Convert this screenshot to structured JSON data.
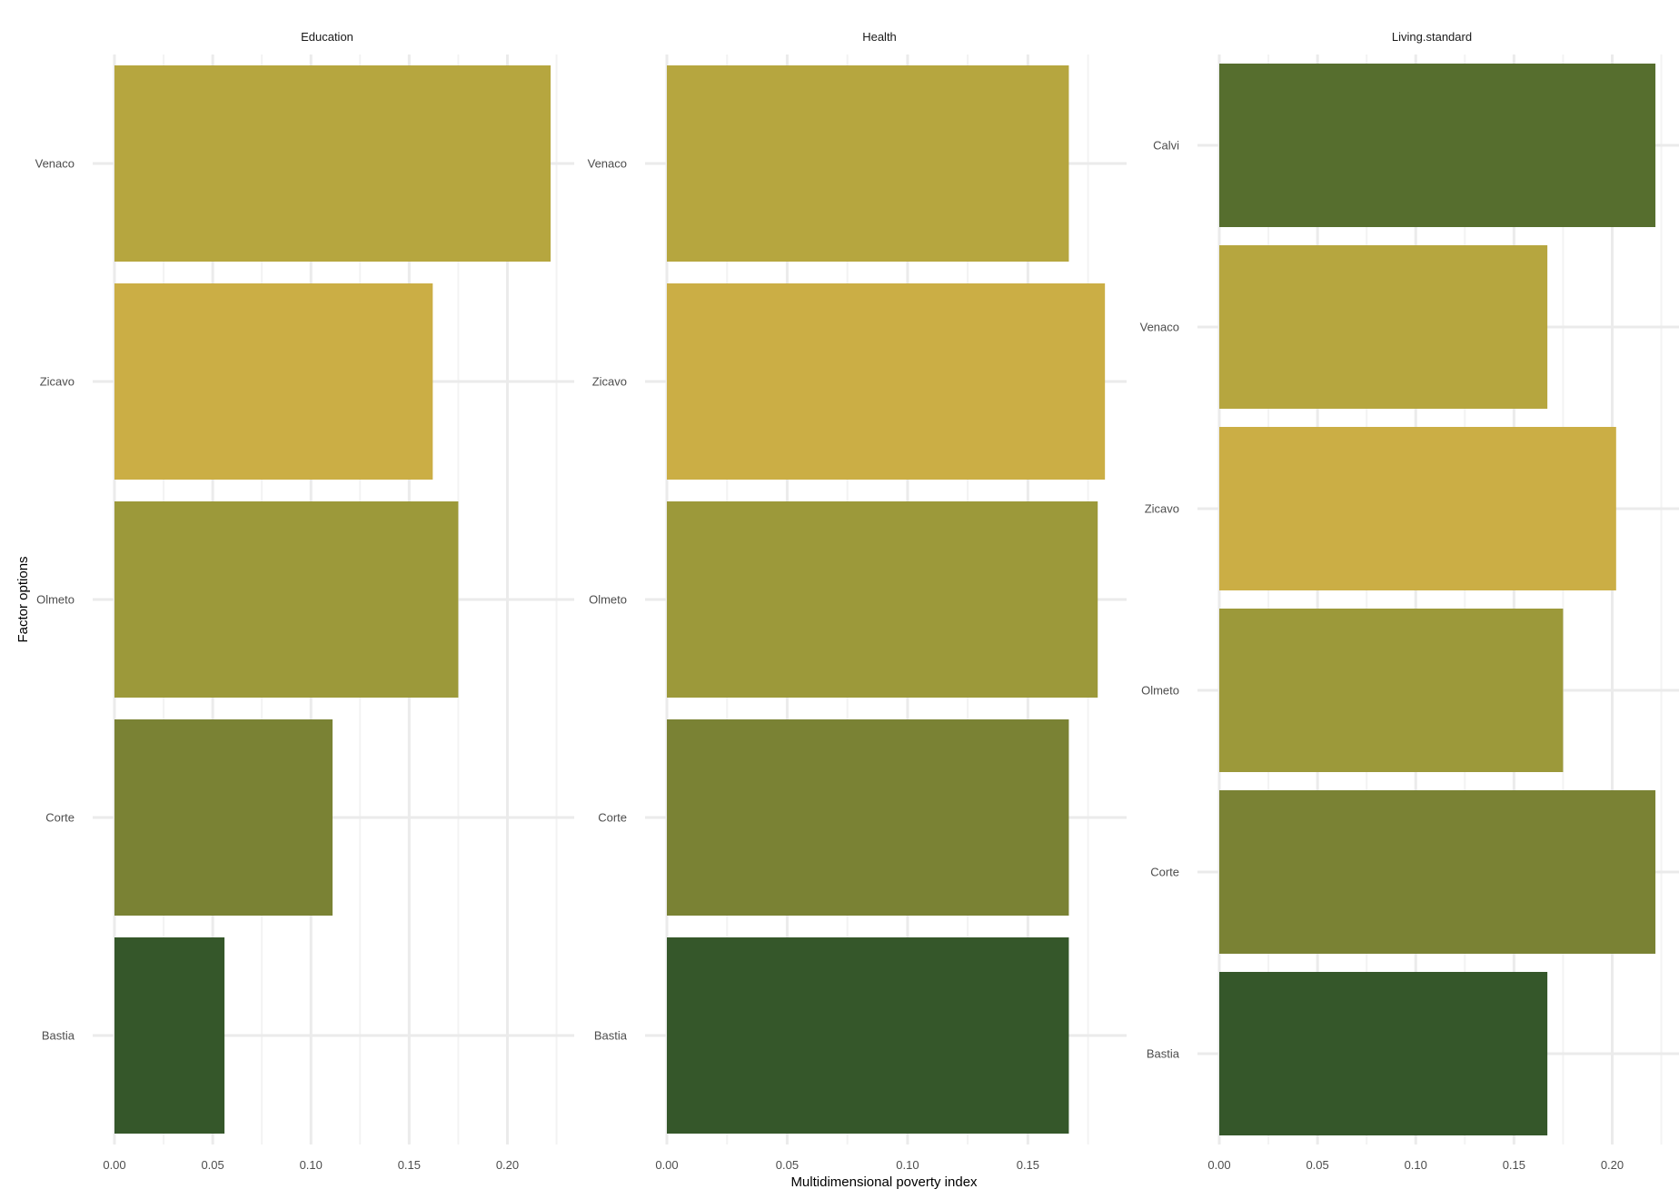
{
  "chart_data": {
    "type": "bar",
    "orientation": "horizontal",
    "xlabel": "Multidimensional poverty index",
    "ylabel": "Factor options",
    "grid": true,
    "legend": "none",
    "colors": {
      "Calvi": "#566e2e",
      "Venaco": "#b6a63f",
      "Zicavo": "#cbae45",
      "Olmeto": "#9c993a",
      "Corte": "#7a8234",
      "Bastia": "#35572a"
    },
    "panels": [
      {
        "title": "Education",
        "xlim": [
          0,
          0.234
        ],
        "xticks": [
          "0.00",
          "0.05",
          "0.10",
          "0.15",
          "0.20"
        ],
        "categories": [
          "Venaco",
          "Zicavo",
          "Olmeto",
          "Corte",
          "Bastia"
        ],
        "values": [
          0.222,
          0.162,
          0.175,
          0.111,
          0.056
        ]
      },
      {
        "title": "Health",
        "xlim": [
          0,
          0.191
        ],
        "xticks": [
          "0.00",
          "0.05",
          "0.10",
          "0.15"
        ],
        "categories": [
          "Venaco",
          "Zicavo",
          "Olmeto",
          "Corte",
          "Bastia"
        ],
        "values": [
          0.167,
          0.182,
          0.179,
          0.167,
          0.167
        ]
      },
      {
        "title": "Living.standard",
        "xlim": [
          0,
          0.234
        ],
        "xticks": [
          "0.00",
          "0.05",
          "0.10",
          "0.15",
          "0.20"
        ],
        "categories": [
          "Calvi",
          "Venaco",
          "Zicavo",
          "Olmeto",
          "Corte",
          "Bastia"
        ],
        "values": [
          0.222,
          0.167,
          0.202,
          0.175,
          0.222,
          0.167
        ]
      }
    ]
  }
}
